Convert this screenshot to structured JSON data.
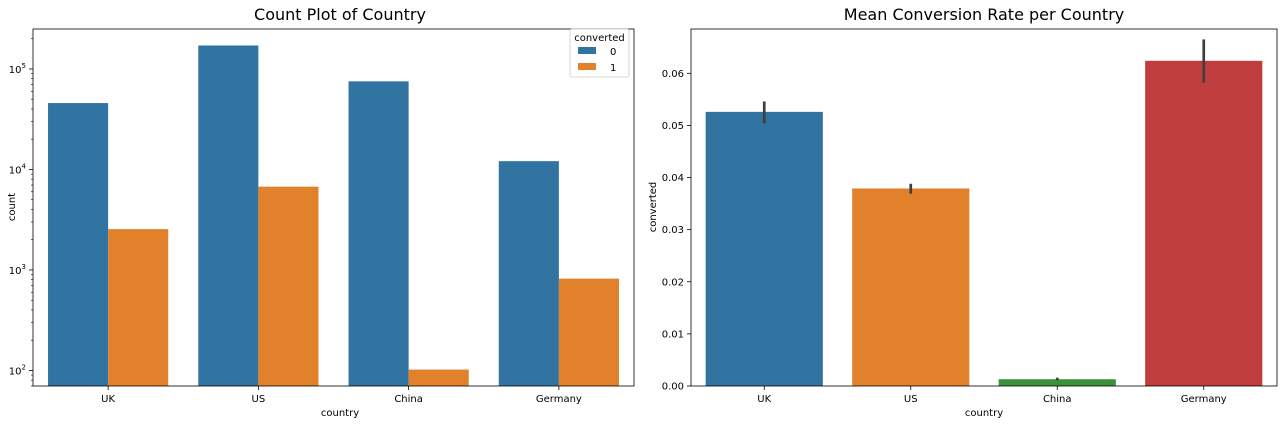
{
  "chart_data": [
    {
      "type": "bar",
      "title": "Count Plot of Country",
      "xlabel": "country",
      "ylabel": "count",
      "yscale": "log",
      "ylim": [
        70,
        250000
      ],
      "yticks": [
        {
          "value": 100,
          "base": "10",
          "exp": "2"
        },
        {
          "value": 1000,
          "base": "10",
          "exp": "3"
        },
        {
          "value": 10000,
          "base": "10",
          "exp": "4"
        },
        {
          "value": 100000,
          "base": "10",
          "exp": "5"
        }
      ],
      "categories": [
        "UK",
        "US",
        "China",
        "Germany"
      ],
      "legend": {
        "title": "converted",
        "placement": "top-right"
      },
      "series": [
        {
          "name": "0",
          "color": "#3274a1",
          "values": [
            45800,
            171300,
            75300,
            12100
          ]
        },
        {
          "name": "1",
          "color": "#e1812c",
          "values": [
            2550,
            6740,
            102,
            820
          ]
        }
      ]
    },
    {
      "type": "bar",
      "title": "Mean Conversion Rate per Country",
      "xlabel": "country",
      "ylabel": "converted",
      "ylim": [
        0,
        0.0685
      ],
      "yticks": [
        0.0,
        0.01,
        0.02,
        0.03,
        0.04,
        0.05,
        0.06
      ],
      "ytick_labels": [
        "0.00",
        "0.01",
        "0.02",
        "0.03",
        "0.04",
        "0.05",
        "0.06"
      ],
      "categories": [
        "UK",
        "US",
        "China",
        "Germany"
      ],
      "colors": [
        "#3274a1",
        "#e1812c",
        "#3a923a",
        "#c03d3e"
      ],
      "values": [
        0.0526,
        0.0379,
        0.0013,
        0.0624
      ],
      "error_low": [
        0.0504,
        0.0369,
        0.0011,
        0.0582
      ],
      "error_high": [
        0.0546,
        0.0388,
        0.0016,
        0.0665
      ]
    }
  ]
}
